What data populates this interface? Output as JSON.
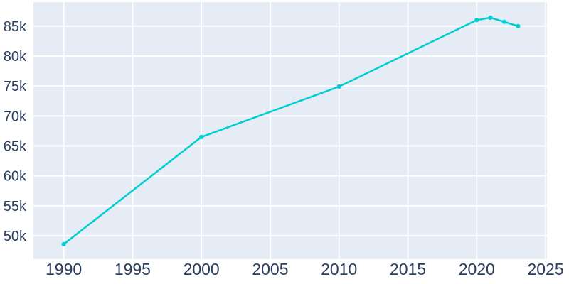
{
  "figure": {
    "background_color": "#ffffff"
  },
  "chart_data": {
    "type": "line",
    "title": "",
    "xlabel": "",
    "ylabel": "",
    "x": [
      1990,
      2000,
      2010,
      2020,
      2021,
      2022,
      2023
    ],
    "y": [
      48600,
      66500,
      74900,
      86000,
      86400,
      85700,
      85000
    ],
    "x_ticks": [
      1990,
      1995,
      2000,
      2005,
      2010,
      2015,
      2020,
      2025
    ],
    "x_tick_labels": [
      "1990",
      "1995",
      "2000",
      "2005",
      "2010",
      "2015",
      "2020",
      "2025"
    ],
    "y_ticks": [
      50000,
      55000,
      60000,
      65000,
      70000,
      75000,
      80000,
      85000
    ],
    "y_tick_labels": [
      "50k",
      "55k",
      "60k",
      "65k",
      "70k",
      "75k",
      "80k",
      "85k"
    ],
    "xlim": [
      1987.8,
      2025.1
    ],
    "ylim": [
      46100,
      89000
    ],
    "grid": true,
    "legend": false,
    "marker": "circle",
    "colors": {
      "line": "#00CED1",
      "plot_background": "#e5ecf6",
      "gridline": "#ffffff",
      "tick_label": "#2a3f5f"
    }
  }
}
